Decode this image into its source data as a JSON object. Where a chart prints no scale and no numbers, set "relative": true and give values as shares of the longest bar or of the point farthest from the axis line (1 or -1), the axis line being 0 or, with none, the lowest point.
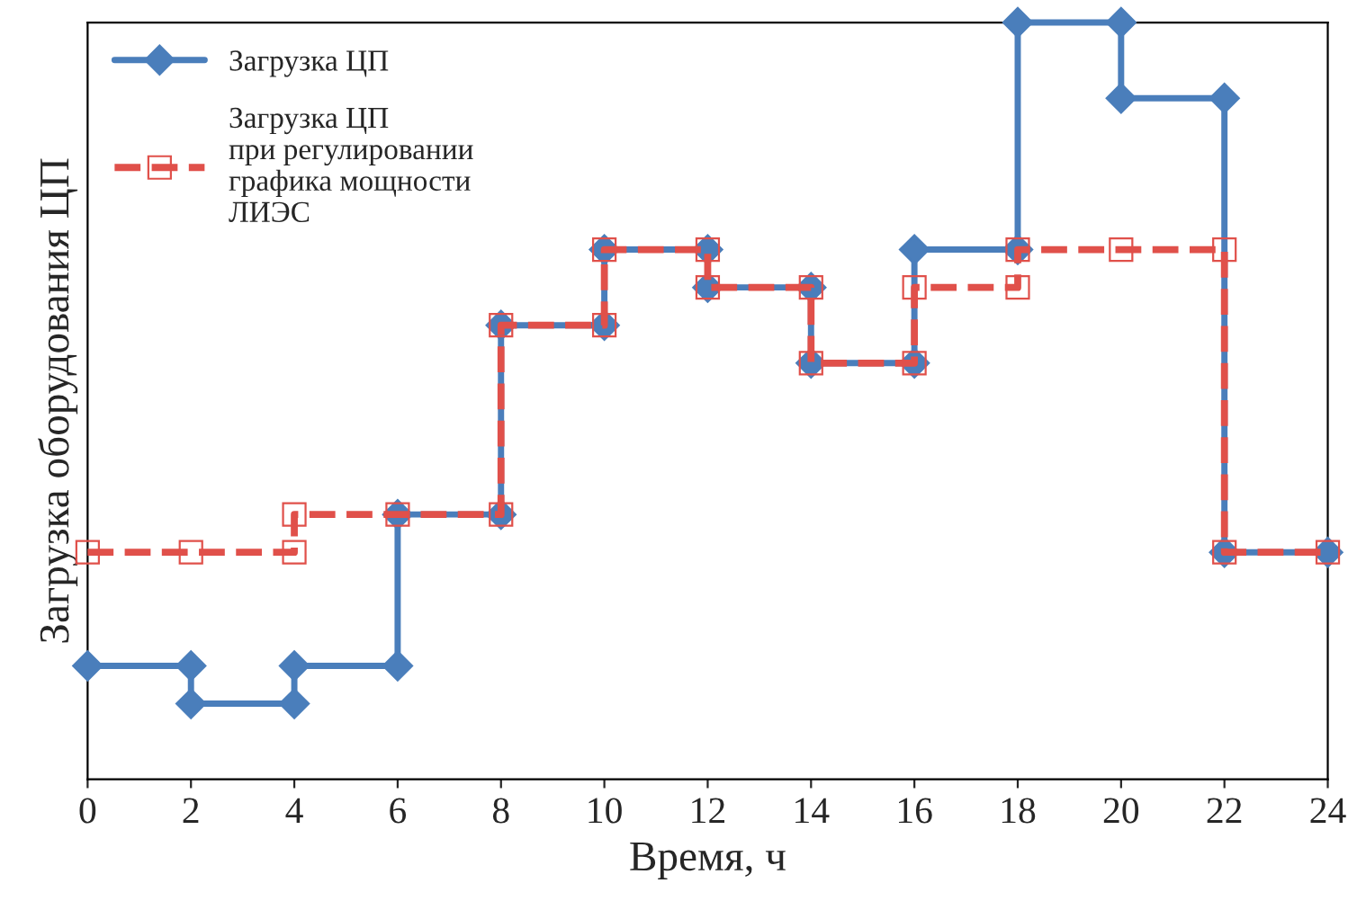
{
  "chart_data": {
    "type": "line",
    "relative": true,
    "xlabel": "Время, ч",
    "ylabel": "Загрузка оборудования ЦП",
    "xlim": [
      0,
      24
    ],
    "xticks": [
      0,
      2,
      4,
      6,
      8,
      10,
      12,
      14,
      16,
      18,
      20,
      22,
      24
    ],
    "grid": false,
    "legend": "top left",
    "series": [
      {
        "name": "Загрузка ЦП",
        "color": "#4a7ebb",
        "marker": "diamond",
        "line_style": "solid",
        "x": [
          0,
          2,
          2,
          4,
          4,
          6,
          6,
          8,
          8,
          10,
          10,
          12,
          12,
          14,
          14,
          16,
          16,
          18,
          18,
          20,
          20,
          22,
          22,
          24
        ],
        "values": [
          0.15,
          0.15,
          0.1,
          0.1,
          0.15,
          0.15,
          0.35,
          0.35,
          0.6,
          0.6,
          0.7,
          0.7,
          0.65,
          0.65,
          0.55,
          0.55,
          0.7,
          0.7,
          1,
          1,
          0.9,
          0.9,
          0.3,
          0.3
        ]
      },
      {
        "name": "Загрузка ЦП\nпри регулировании\nграфика мощности\nЛИЭС",
        "color": "#e0504a",
        "marker": "square",
        "line_style": "dashed",
        "x": [
          0,
          2,
          4,
          4,
          6,
          8,
          8,
          10,
          10,
          12,
          12,
          14,
          14,
          16,
          16,
          18,
          18,
          20,
          22,
          22,
          24
        ],
        "values": [
          0.3,
          0.3,
          0.3,
          0.35,
          0.35,
          0.35,
          0.6,
          0.6,
          0.7,
          0.7,
          0.65,
          0.65,
          0.55,
          0.55,
          0.65,
          0.65,
          0.7,
          0.7,
          0.7,
          0.3,
          0.3
        ]
      }
    ]
  }
}
